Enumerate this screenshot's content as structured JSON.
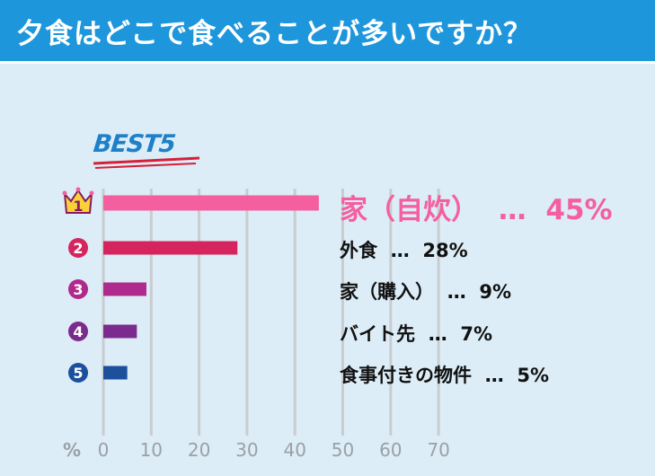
{
  "title": "夕食はどこで食べることが多いですか？",
  "best_label": "BEST5",
  "colors": {
    "header_bg": "#1e96dc",
    "background": "#dcedf7",
    "grid": "#c9ccd0",
    "underline": "#d6203a"
  },
  "chart_data": {
    "type": "bar",
    "orientation": "horizontal",
    "title": "",
    "xlabel": "%",
    "ylabel": "",
    "xlim": [
      0,
      70
    ],
    "xticks": [
      0,
      10,
      20,
      30,
      40,
      50,
      60,
      70
    ],
    "grid": true,
    "ranks": [
      "1",
      "2",
      "3",
      "4",
      "5"
    ],
    "categories": [
      "家（自炊）",
      "外食",
      "家（購入）",
      "バイト先",
      "食事付きの物件"
    ],
    "values": [
      45,
      28,
      9,
      7,
      5
    ],
    "value_labels": [
      "45%",
      "28%",
      "9%",
      "7%",
      "5%"
    ],
    "separator": "…",
    "colors": [
      "#f45fa0",
      "#d6255e",
      "#b02a8e",
      "#7b2b8e",
      "#1c4f9c"
    ],
    "rank_icon_colors": [
      "#f7d33a",
      "#d6255e",
      "#b02a8e",
      "#7b2b8e",
      "#1c4f9c"
    ]
  }
}
